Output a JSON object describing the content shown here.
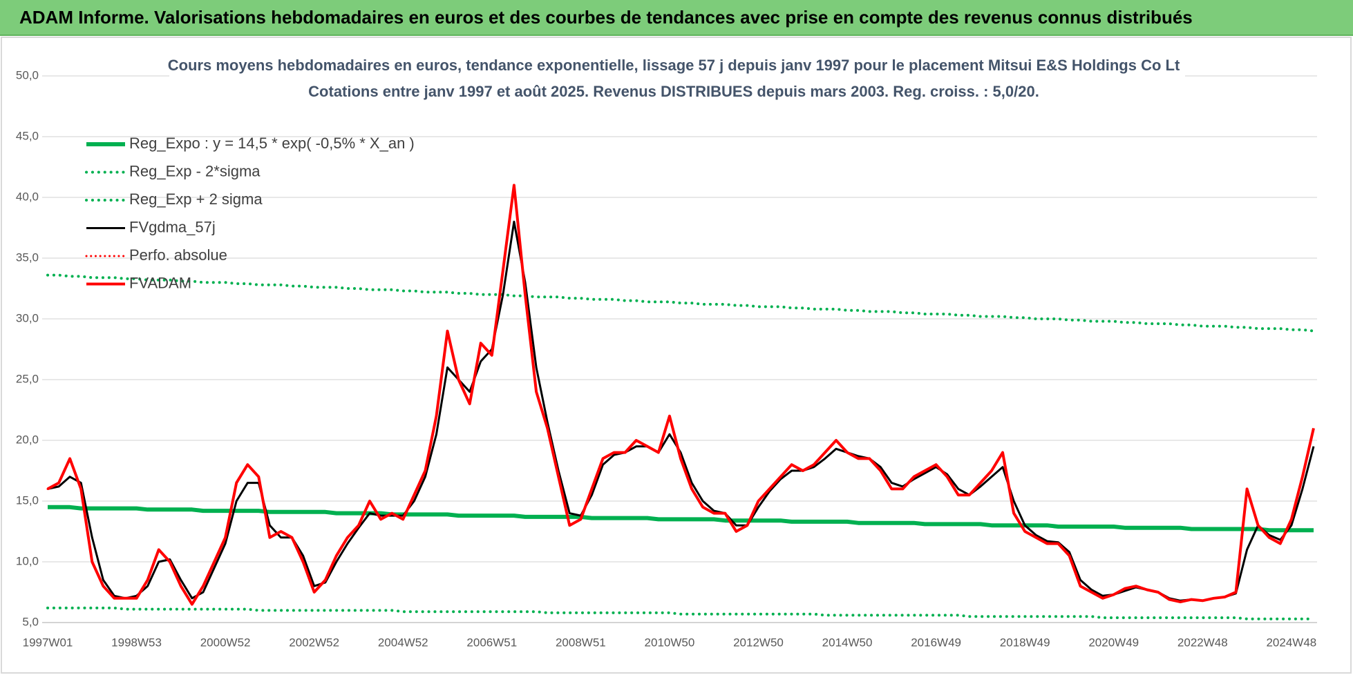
{
  "header": {
    "title": "ADAM Informe. Valorisations hebdomadaires en euros et des courbes de tendances avec prise en compte des revenus connus distribués"
  },
  "chart_data": {
    "type": "line",
    "title": "Cours moyens hebdomadaires en euros, tendance exponentielle, lissage 57 j depuis janv 1997 pour le placement Mitsui E&S Holdings Co Lt",
    "subtitle": "Cotations entre janv 1997 et août 2025.  Revenus DISTRIBUES depuis mars 2003. Reg. croiss. : 5,0/20.",
    "categories": [
      "1997W01",
      null,
      null,
      null,
      null,
      null,
      null,
      null,
      "1998W53",
      null,
      null,
      null,
      null,
      null,
      null,
      null,
      "2000W52",
      null,
      null,
      null,
      null,
      null,
      null,
      null,
      "2002W52",
      null,
      null,
      null,
      null,
      null,
      null,
      null,
      "2004W52",
      null,
      null,
      null,
      null,
      null,
      null,
      null,
      "2006W51",
      null,
      null,
      null,
      null,
      null,
      null,
      null,
      "2008W51",
      null,
      null,
      null,
      null,
      null,
      null,
      null,
      "2010W50",
      null,
      null,
      null,
      null,
      null,
      null,
      null,
      "2012W50",
      null,
      null,
      null,
      null,
      null,
      null,
      null,
      "2014W50",
      null,
      null,
      null,
      null,
      null,
      null,
      null,
      "2016W49",
      null,
      null,
      null,
      null,
      null,
      null,
      null,
      "2018W49",
      null,
      null,
      null,
      null,
      null,
      null,
      null,
      "2020W49",
      null,
      null,
      null,
      null,
      null,
      null,
      null,
      "2022W48",
      null,
      null,
      null,
      null,
      null,
      null,
      null,
      "2024W48",
      null,
      null
    ],
    "series": [
      {
        "name": "Reg_Expo : y = 14,5 * exp( -0,5% *  X_an )",
        "color": "#00b050",
        "style": "solid",
        "width": 6,
        "values": [
          14.5,
          14.5,
          14.5,
          14.4,
          14.4,
          14.4,
          14.4,
          14.4,
          14.4,
          14.3,
          14.3,
          14.3,
          14.3,
          14.3,
          14.2,
          14.2,
          14.2,
          14.2,
          14.2,
          14.2,
          14.1,
          14.1,
          14.1,
          14.1,
          14.1,
          14.1,
          14.0,
          14.0,
          14.0,
          14.0,
          14.0,
          13.9,
          13.9,
          13.9,
          13.9,
          13.9,
          13.9,
          13.8,
          13.8,
          13.8,
          13.8,
          13.8,
          13.8,
          13.7,
          13.7,
          13.7,
          13.7,
          13.7,
          13.7,
          13.6,
          13.6,
          13.6,
          13.6,
          13.6,
          13.6,
          13.5,
          13.5,
          13.5,
          13.5,
          13.5,
          13.5,
          13.4,
          13.4,
          13.4,
          13.4,
          13.4,
          13.4,
          13.3,
          13.3,
          13.3,
          13.3,
          13.3,
          13.3,
          13.2,
          13.2,
          13.2,
          13.2,
          13.2,
          13.2,
          13.1,
          13.1,
          13.1,
          13.1,
          13.1,
          13.1,
          13.0,
          13.0,
          13.0,
          13.0,
          13.0,
          13.0,
          12.9,
          12.9,
          12.9,
          12.9,
          12.9,
          12.9,
          12.8,
          12.8,
          12.8,
          12.8,
          12.8,
          12.8,
          12.7,
          12.7,
          12.7,
          12.7,
          12.7,
          12.7,
          12.7,
          12.6,
          12.6,
          12.6,
          12.6,
          12.6
        ]
      },
      {
        "name": "Reg_Exp - 2*sigma",
        "color": "#00b050",
        "style": "dotted",
        "width": 4,
        "values": [
          6.2,
          6.2,
          6.2,
          6.2,
          6.2,
          6.2,
          6.2,
          6.1,
          6.1,
          6.1,
          6.1,
          6.1,
          6.1,
          6.1,
          6.1,
          6.1,
          6.1,
          6.1,
          6.1,
          6.0,
          6.0,
          6.0,
          6.0,
          6.0,
          6.0,
          6.0,
          6.0,
          6.0,
          6.0,
          6.0,
          6.0,
          6.0,
          5.9,
          5.9,
          5.9,
          5.9,
          5.9,
          5.9,
          5.9,
          5.9,
          5.9,
          5.9,
          5.9,
          5.9,
          5.9,
          5.8,
          5.8,
          5.8,
          5.8,
          5.8,
          5.8,
          5.8,
          5.8,
          5.8,
          5.8,
          5.8,
          5.8,
          5.7,
          5.7,
          5.7,
          5.7,
          5.7,
          5.7,
          5.7,
          5.7,
          5.7,
          5.7,
          5.7,
          5.7,
          5.7,
          5.6,
          5.6,
          5.6,
          5.6,
          5.6,
          5.6,
          5.6,
          5.6,
          5.6,
          5.6,
          5.6,
          5.6,
          5.6,
          5.5,
          5.5,
          5.5,
          5.5,
          5.5,
          5.5,
          5.5,
          5.5,
          5.5,
          5.5,
          5.5,
          5.5,
          5.4,
          5.4,
          5.4,
          5.4,
          5.4,
          5.4,
          5.4,
          5.4,
          5.4,
          5.4,
          5.4,
          5.4,
          5.4,
          5.3,
          5.3,
          5.3,
          5.3,
          5.3,
          5.3,
          5.3
        ]
      },
      {
        "name": "Reg_Exp + 2 sigma",
        "color": "#00b050",
        "style": "dotted",
        "width": 4,
        "values": [
          33.6,
          33.6,
          33.5,
          33.5,
          33.4,
          33.4,
          33.4,
          33.3,
          33.3,
          33.2,
          33.2,
          33.2,
          33.1,
          33.1,
          33.0,
          33.0,
          33.0,
          32.9,
          32.9,
          32.8,
          32.8,
          32.8,
          32.7,
          32.7,
          32.6,
          32.6,
          32.6,
          32.5,
          32.5,
          32.4,
          32.4,
          32.4,
          32.3,
          32.3,
          32.2,
          32.2,
          32.2,
          32.1,
          32.1,
          32.0,
          32.0,
          32.0,
          31.9,
          31.9,
          31.8,
          31.8,
          31.8,
          31.7,
          31.7,
          31.6,
          31.6,
          31.6,
          31.5,
          31.5,
          31.4,
          31.4,
          31.4,
          31.3,
          31.3,
          31.2,
          31.2,
          31.2,
          31.1,
          31.1,
          31.0,
          31.0,
          31.0,
          30.9,
          30.9,
          30.8,
          30.8,
          30.8,
          30.7,
          30.7,
          30.6,
          30.6,
          30.6,
          30.5,
          30.5,
          30.4,
          30.4,
          30.4,
          30.3,
          30.3,
          30.2,
          30.2,
          30.2,
          30.1,
          30.1,
          30.0,
          30.0,
          30.0,
          29.9,
          29.9,
          29.8,
          29.8,
          29.8,
          29.7,
          29.7,
          29.6,
          29.6,
          29.6,
          29.5,
          29.5,
          29.4,
          29.4,
          29.4,
          29.3,
          29.3,
          29.2,
          29.2,
          29.2,
          29.1,
          29.1,
          29.0
        ]
      },
      {
        "name": "FVgdma_57j",
        "color": "#000000",
        "style": "solid",
        "width": 3,
        "values": [
          16,
          16.2,
          17,
          16.5,
          12,
          8.5,
          7.2,
          7,
          7.2,
          8,
          10,
          10.2,
          8.5,
          7,
          7.5,
          9.5,
          11.5,
          15,
          16.5,
          16.5,
          13,
          12,
          12,
          10.5,
          8,
          8.3,
          10,
          11.5,
          12.8,
          14,
          13.8,
          13.8,
          13.8,
          15,
          17,
          20.5,
          26,
          25,
          24,
          26.5,
          27.5,
          32,
          38,
          33,
          26,
          21.5,
          17.5,
          14,
          13.8,
          15.5,
          18,
          18.8,
          19,
          19.5,
          19.5,
          19,
          20.5,
          19,
          16.5,
          15,
          14.2,
          14,
          13,
          13,
          14.5,
          15.8,
          16.8,
          17.5,
          17.5,
          17.8,
          18.5,
          19.3,
          19,
          18.7,
          18.5,
          17.8,
          16.5,
          16.2,
          16.8,
          17.3,
          17.8,
          17.2,
          16,
          15.5,
          16.2,
          17,
          17.8,
          15,
          13,
          12.2,
          11.7,
          11.6,
          10.8,
          8.5,
          7.7,
          7.2,
          7.3,
          7.6,
          7.9,
          7.7,
          7.5,
          7,
          6.8,
          6.9,
          6.8,
          7,
          7.1,
          7.4,
          11,
          13,
          12.2,
          11.8,
          13,
          16,
          19.5
        ]
      },
      {
        "name": "Perfo. absolue",
        "color": "#ff0000",
        "style": "dotted",
        "width": 3,
        "values": [
          16,
          16.5,
          18.5,
          16,
          10,
          8,
          7,
          7,
          7,
          8.5,
          11,
          10,
          8,
          6.5,
          8,
          10,
          12,
          16.5,
          18,
          17,
          12,
          12.5,
          12,
          10,
          7.5,
          8.5,
          10.5,
          12,
          13,
          15,
          13.5,
          14,
          13.5,
          15.5,
          17.5,
          22,
          29,
          25,
          23,
          28,
          27,
          34,
          41,
          32,
          24,
          21,
          17,
          13,
          13.5,
          16,
          18.5,
          19,
          19,
          20,
          19.5,
          19,
          22,
          18.5,
          16,
          14.5,
          14,
          14,
          12.5,
          13,
          15,
          16,
          17,
          18,
          17.5,
          18,
          19,
          20,
          19,
          18.5,
          18.5,
          17.5,
          16,
          16,
          17,
          17.5,
          18,
          17,
          15.5,
          15.5,
          16.5,
          17.5,
          19,
          14,
          12.5,
          12,
          11.5,
          11.5,
          10.5,
          8,
          7.5,
          7,
          7.3,
          7.8,
          8,
          7.7,
          7.5,
          6.9,
          6.7,
          6.9,
          6.8,
          7,
          7.1,
          7.5,
          16,
          13,
          12,
          11.5,
          13.5,
          17,
          21
        ]
      },
      {
        "name": "FVADAM",
        "color": "#ff0000",
        "style": "solid",
        "width": 4,
        "values": [
          16,
          16.5,
          18.5,
          16,
          10,
          8,
          7,
          7,
          7,
          8.5,
          11,
          10,
          8,
          6.5,
          8,
          10,
          12,
          16.5,
          18,
          17,
          12,
          12.5,
          12,
          10,
          7.5,
          8.5,
          10.5,
          12,
          13,
          15,
          13.5,
          14,
          13.5,
          15.5,
          17.5,
          22,
          29,
          25,
          23,
          28,
          27,
          34,
          41,
          32,
          24,
          21,
          17,
          13,
          13.5,
          16,
          18.5,
          19,
          19,
          20,
          19.5,
          19,
          22,
          18.5,
          16,
          14.5,
          14,
          14,
          12.5,
          13,
          15,
          16,
          17,
          18,
          17.5,
          18,
          19,
          20,
          19,
          18.5,
          18.5,
          17.5,
          16,
          16,
          17,
          17.5,
          18,
          17,
          15.5,
          15.5,
          16.5,
          17.5,
          19,
          14,
          12.5,
          12,
          11.5,
          11.5,
          10.5,
          8,
          7.5,
          7,
          7.3,
          7.8,
          8,
          7.7,
          7.5,
          6.9,
          6.7,
          6.9,
          6.8,
          7,
          7.1,
          7.5,
          16,
          13,
          12,
          11.5,
          13.5,
          17,
          21
        ]
      }
    ],
    "ylim": [
      5,
      50
    ],
    "yticks": [
      {
        "value": 5,
        "label": "5,0"
      },
      {
        "value": 10,
        "label": "10,0"
      },
      {
        "value": 15,
        "label": "15,0"
      },
      {
        "value": 20,
        "label": "20,0"
      },
      {
        "value": 25,
        "label": "25,0"
      },
      {
        "value": 30,
        "label": "30,0"
      },
      {
        "value": 35,
        "label": "35,0"
      },
      {
        "value": 40,
        "label": "40,0"
      },
      {
        "value": 45,
        "label": "45,0"
      },
      {
        "value": 50,
        "label": "50,0"
      }
    ],
    "grid": true,
    "legend": "upper left"
  }
}
